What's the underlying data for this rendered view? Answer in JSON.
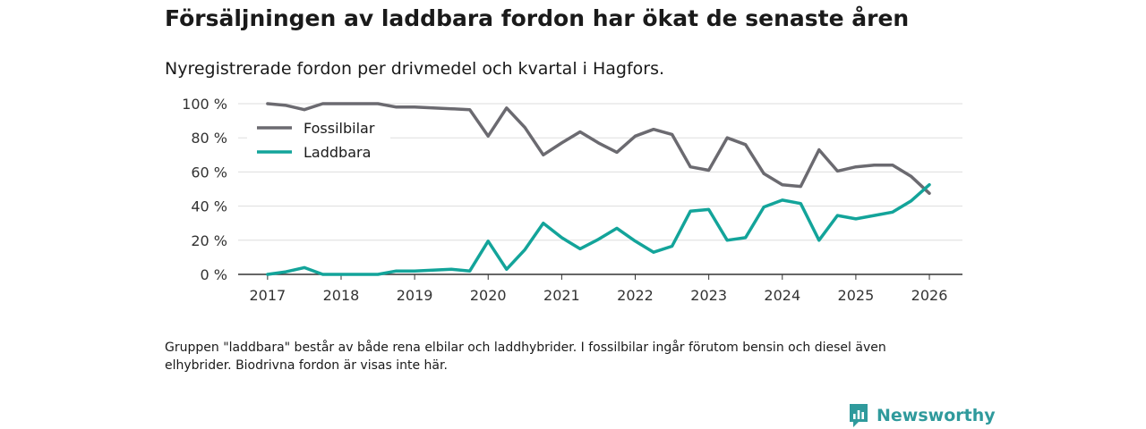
{
  "title": "Försäljningen av laddbara fordon har ökat de senaste åren",
  "subtitle": "Nyregistrerade fordon per drivmedel och kvartal i Hagfors.",
  "footnote": "Gruppen \"laddbara\" består av både rena elbilar och laddhybrider. I fossilbilar ingår förutom bensin och diesel även elhybrider. Biodrivna fordon är visas inte här.",
  "brand": {
    "name": "Newsworthy"
  },
  "colors": {
    "fossil": "#6b6a70",
    "laddbara": "#13a49a",
    "grid": "#dddddd",
    "axis": "#333333",
    "brand": "#2f9a9c"
  },
  "chart_data": {
    "type": "line",
    "title": "Försäljningen av laddbara fordon har ökat de senaste åren",
    "xlabel": "",
    "ylabel": "",
    "x": [
      2017.0,
      2017.25,
      2017.5,
      2017.75,
      2018.0,
      2018.25,
      2018.5,
      2018.75,
      2019.0,
      2019.25,
      2019.5,
      2019.75,
      2020.0,
      2020.25,
      2020.5,
      2020.75,
      2021.0,
      2021.25,
      2021.5,
      2021.75,
      2022.0,
      2022.25,
      2022.5,
      2022.75,
      2023.0,
      2023.25,
      2023.5,
      2023.75,
      2024.0,
      2024.25,
      2024.5,
      2024.75,
      2025.0,
      2025.25,
      2025.5,
      2025.75,
      2026.0
    ],
    "series": [
      {
        "name": "Fossilbilar",
        "color": "#6b6a70",
        "values": [
          100,
          99,
          96.5,
          100,
          100,
          100,
          100,
          98,
          98,
          97.5,
          97,
          96.5,
          81,
          97.5,
          86,
          70,
          77,
          83.5,
          77,
          71.5,
          81,
          85,
          82,
          63,
          61,
          80,
          76,
          59,
          52.5,
          51.5,
          73,
          60.5,
          63,
          64,
          64,
          57.5,
          47.5
        ]
      },
      {
        "name": "Laddbara",
        "color": "#13a49a",
        "values": [
          0,
          1.5,
          4,
          0,
          0,
          0,
          0,
          2,
          2,
          2.5,
          3,
          2,
          19.5,
          3,
          14.5,
          30,
          21.5,
          15,
          20.5,
          27,
          19.5,
          13,
          16.5,
          37,
          38,
          20,
          21.5,
          39.5,
          43.5,
          41.5,
          20,
          34.5,
          32.5,
          34.5,
          36.5,
          43,
          52.5
        ]
      }
    ],
    "ylim": [
      0,
      100
    ],
    "xlim": [
      2016.6,
      2026.45
    ],
    "yticks": [
      0,
      20,
      40,
      60,
      80,
      100
    ],
    "ytick_labels": [
      "0 %",
      "20 %",
      "40 %",
      "60 %",
      "80 %",
      "100 %"
    ],
    "xticks": [
      2017,
      2018,
      2019,
      2020,
      2021,
      2022,
      2023,
      2024,
      2025,
      2026
    ],
    "xtick_labels": [
      "2017",
      "2018",
      "2019",
      "2020",
      "2021",
      "2022",
      "2023",
      "2024",
      "2025",
      "2026"
    ],
    "legend": {
      "position": "top-left",
      "entries": [
        "Fossilbilar",
        "Laddbara"
      ]
    },
    "grid": true
  }
}
